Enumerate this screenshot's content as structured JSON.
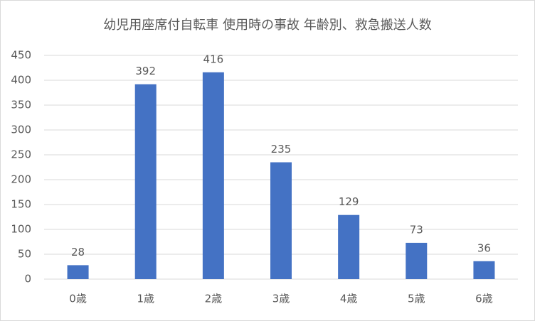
{
  "chart_data": {
    "type": "bar",
    "title": "幼児用座席付自転車 使用時の事故 年齢別、救急搬送人数",
    "categories": [
      "0歳",
      "1歳",
      "2歳",
      "3歳",
      "4歳",
      "5歳",
      "6歳"
    ],
    "values": [
      28,
      392,
      416,
      235,
      129,
      73,
      36
    ],
    "color": "#4472c4",
    "ylim": [
      0,
      450
    ],
    "yticks": [
      0,
      50,
      100,
      150,
      200,
      250,
      300,
      350,
      400,
      450
    ],
    "grid": true,
    "data_labels": true
  }
}
